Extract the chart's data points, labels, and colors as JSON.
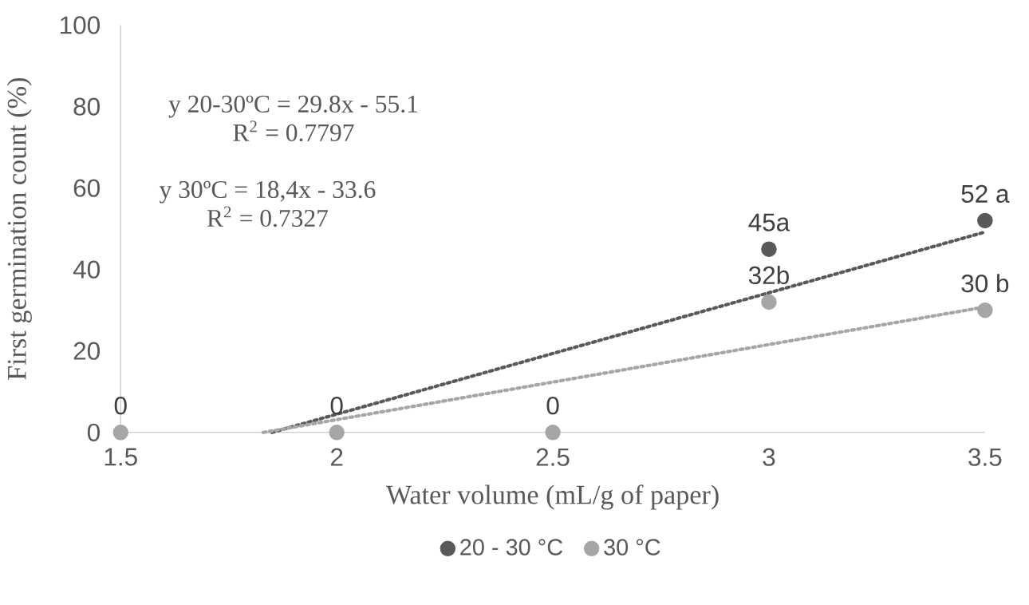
{
  "chart_data": {
    "type": "scatter",
    "xlabel": "Water volume (mL/g of paper)",
    "ylabel": "First germination count (%)",
    "x": [
      1.5,
      2,
      2.5,
      3,
      3.5
    ],
    "series": [
      {
        "name": "20 - 30 °C",
        "color": "#595959",
        "marker": "circle",
        "values": [
          null,
          null,
          null,
          45,
          52
        ],
        "value_labels": [
          null,
          null,
          null,
          "45a",
          "52 a"
        ]
      },
      {
        "name": "30 °C",
        "color": "#a6a6a6",
        "marker": "circle",
        "values": [
          0,
          0,
          0,
          32,
          30
        ],
        "value_labels": [
          "0",
          "0",
          "0",
          "32b",
          "30 b"
        ]
      },
      {
        "type": "line",
        "color": "#595959",
        "line_style": "dotted",
        "marker": "none",
        "x": [
          1.85,
          3.5
        ],
        "values": [
          0,
          49.2
        ]
      },
      {
        "type": "line",
        "color": "#a6a6a6",
        "line_style": "dotted",
        "marker": "none",
        "x": [
          1.83,
          3.5
        ],
        "values": [
          0,
          30.8
        ]
      }
    ],
    "xlim": [
      1.5,
      3.5
    ],
    "xticks": [
      1.5,
      2,
      2.5,
      3,
      3.5
    ],
    "ylim": [
      0,
      100
    ],
    "yticks": [
      0,
      20,
      40,
      60,
      80,
      100
    ],
    "grid": false,
    "legend": "bottom",
    "annotations": [
      "y 20-30ºC = 29.8x - 55.1",
      "R$^{2}$ = 0.7797",
      "y 30ºC = 18,4x - 33.6",
      "R$^{2}$ = 0.7327"
    ]
  }
}
